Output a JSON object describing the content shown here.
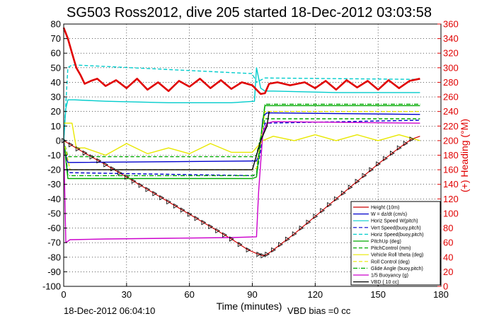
{
  "chart_data": {
    "type": "line",
    "title": "SG503 Ross2012, dive 205 started 18-Dec-2012 03:03:58",
    "xlabel": "Time (minutes)",
    "ylabel_right": "(+) Heading (°M)",
    "xlim": [
      0,
      180
    ],
    "ylim": [
      -100,
      80
    ],
    "ylim_right": [
      0,
      360
    ],
    "xticks": [
      "0",
      "30",
      "60",
      "90",
      "120",
      "150",
      "180"
    ],
    "yticks": [
      "-100",
      "-90",
      "-80",
      "-70",
      "-60",
      "-50",
      "-40",
      "-30",
      "-20",
      "-10",
      "0",
      "10",
      "20",
      "30",
      "40",
      "50",
      "60",
      "70",
      "80"
    ],
    "yticks_right": [
      "0",
      "20",
      "40",
      "60",
      "80",
      "100",
      "120",
      "140",
      "160",
      "180",
      "200",
      "220",
      "240",
      "260",
      "280",
      "300",
      "320",
      "340",
      "360"
    ],
    "grid": true,
    "legend_placement": "bottom-right",
    "footer_left": "18-Dec-2012 06:04:10",
    "footer_center": "VBD bias =0 cc",
    "legend": [
      {
        "label": "Height (10m)",
        "color": "#cc0000",
        "dash": "solid"
      },
      {
        "label": "W = dz/dt (cm/s)",
        "color": "#0000cc",
        "dash": "solid"
      },
      {
        "label": "Horiz Speed W(pitch)",
        "color": "#00cccc",
        "dash": "solid"
      },
      {
        "label": "Vert Speed(buoy,pitch)",
        "color": "#0000cc",
        "dash": "dashed"
      },
      {
        "label": "Horiz Speed(buoy,pitch)",
        "color": "#00cccc",
        "dash": "dashed"
      },
      {
        "label": "PitchUp (deg)",
        "color": "#00aa00",
        "dash": "solid"
      },
      {
        "label": "PitchControl (mm)",
        "color": "#00aa00",
        "dash": "dashed"
      },
      {
        "label": "Vehicle Roll \\theta (deg)",
        "color": "#e8e800",
        "dash": "solid"
      },
      {
        "label": "Roll Control (deg)",
        "color": "#e8e800",
        "dash": "dashed"
      },
      {
        "label": "Glide Angle (buoy,pitch)",
        "color": "#00aa00",
        "dash": "dashdot"
      },
      {
        "label": "1/5 Buoyancy (g)",
        "color": "#cc00cc",
        "dash": "solid"
      },
      {
        "label": "VBD ( 10 cc)",
        "color": "#000000",
        "dash": "solid"
      }
    ],
    "series": [
      {
        "name": "Height (10m)",
        "axis": "left",
        "color": "#cc0000",
        "x": [
          0,
          10,
          20,
          30,
          40,
          50,
          60,
          70,
          80,
          88,
          93,
          95,
          97,
          100,
          110,
          120,
          130,
          140,
          150,
          160,
          166,
          170
        ],
        "y": [
          0,
          -8.5,
          -16.5,
          -25,
          -33.5,
          -42,
          -50.5,
          -59,
          -67.5,
          -75,
          -78,
          -79,
          -78,
          -75,
          -64,
          -52,
          -40,
          -28,
          -16,
          -5,
          1,
          3
        ]
      },
      {
        "name": "W = dz/dt (cm/s)",
        "axis": "left",
        "color": "#0000cc",
        "x": [
          0,
          1,
          2,
          90,
          92,
          93,
          94,
          95,
          96,
          97,
          170
        ],
        "y": [
          0,
          -10,
          -15,
          -14,
          -14,
          -10,
          0,
          15,
          18,
          19,
          18
        ]
      },
      {
        "name": "Horiz Speed W(pitch)",
        "axis": "left",
        "color": "#00cccc",
        "x": [
          0,
          1,
          2,
          5,
          20,
          50,
          80,
          91,
          92,
          94,
          96,
          100,
          130,
          170
        ],
        "y": [
          0,
          22,
          28,
          28,
          27,
          26,
          26,
          27,
          50,
          36,
          34,
          34,
          33,
          33
        ]
      },
      {
        "name": "Vert Speed(buoy,pitch)",
        "axis": "left",
        "color": "#0000cc",
        "x": [
          0,
          2,
          90,
          92,
          96,
          170
        ],
        "y": [
          0,
          -22,
          -24,
          -24,
          12,
          14
        ]
      },
      {
        "name": "Horiz Speed(buoy,pitch)",
        "axis": "left",
        "color": "#00cccc",
        "x": [
          0,
          2,
          4,
          90,
          92,
          96,
          170
        ],
        "y": [
          0,
          50,
          52,
          46,
          40,
          43,
          42
        ]
      },
      {
        "name": "PitchUp (deg)",
        "axis": "left",
        "color": "#00aa00",
        "x": [
          0,
          2,
          90,
          92,
          96,
          170
        ],
        "y": [
          0,
          -26,
          -26,
          -25,
          24,
          24
        ]
      },
      {
        "name": "PitchControl (mm)",
        "axis": "left",
        "color": "#00aa00",
        "x": [
          0,
          2,
          90,
          92,
          96,
          170
        ],
        "y": [
          0,
          -11,
          -11,
          -10,
          15,
          15
        ]
      },
      {
        "name": "Vehicle Roll \\theta (deg)",
        "axis": "left",
        "color": "#e8e800",
        "x": [
          0,
          4,
          6,
          10,
          20,
          30,
          40,
          50,
          60,
          70,
          80,
          90,
          95,
          100,
          110,
          120,
          130,
          140,
          150,
          160,
          170
        ],
        "y": [
          12,
          12,
          -5,
          -5,
          -10,
          -2,
          -9,
          -5,
          -9,
          -2,
          -8,
          -8,
          0,
          3,
          0,
          4,
          0,
          4,
          0,
          4,
          0
        ]
      },
      {
        "name": "Roll Control (deg)",
        "axis": "left",
        "color": "#e8e800",
        "x": [
          0,
          3,
          90,
          92,
          96,
          170
        ],
        "y": [
          0,
          -20,
          -20,
          -19,
          20,
          20
        ]
      },
      {
        "name": "Glide Angle (buoy,pitch)",
        "axis": "left",
        "color": "#00aa00",
        "x": [
          0,
          2,
          90,
          92,
          96,
          170
        ],
        "y": [
          0,
          -24,
          -24,
          -23,
          25,
          25
        ]
      },
      {
        "name": "1/5 Buoyancy (g)",
        "axis": "left",
        "color": "#cc00cc",
        "x": [
          0,
          1,
          3,
          20,
          50,
          80,
          92,
          93,
          95,
          97,
          100,
          170
        ],
        "y": [
          0,
          -70,
          -68,
          -67.5,
          -67,
          -66.5,
          -66,
          -35,
          5,
          12,
          13,
          12
        ]
      },
      {
        "name": "VBD ( 10 cc)",
        "axis": "left",
        "color": "#000000",
        "x": [
          0,
          1,
          90,
          91,
          94,
          97,
          98
        ],
        "y": [
          -20,
          -20,
          -20,
          -15,
          0,
          10,
          20
        ]
      },
      {
        "name": "(+) Heading (°M)",
        "axis": "right",
        "color": "#e00000",
        "x": [
          0,
          2,
          4,
          6,
          8,
          10,
          13,
          16,
          20,
          25,
          30,
          35,
          40,
          45,
          50,
          55,
          60,
          65,
          70,
          75,
          80,
          85,
          90,
          92,
          94,
          96,
          98,
          102,
          108,
          115,
          120,
          125,
          130,
          135,
          140,
          145,
          150,
          155,
          160,
          165,
          170
        ],
        "y": [
          355,
          340,
          320,
          300,
          290,
          278,
          282,
          285,
          275,
          283,
          272,
          285,
          270,
          280,
          268,
          282,
          274,
          285,
          272,
          283,
          271,
          280,
          276,
          270,
          264,
          265,
          278,
          280,
          276,
          280,
          272,
          282,
          270,
          283,
          273,
          282,
          270,
          283,
          272,
          282,
          285
        ]
      }
    ]
  }
}
